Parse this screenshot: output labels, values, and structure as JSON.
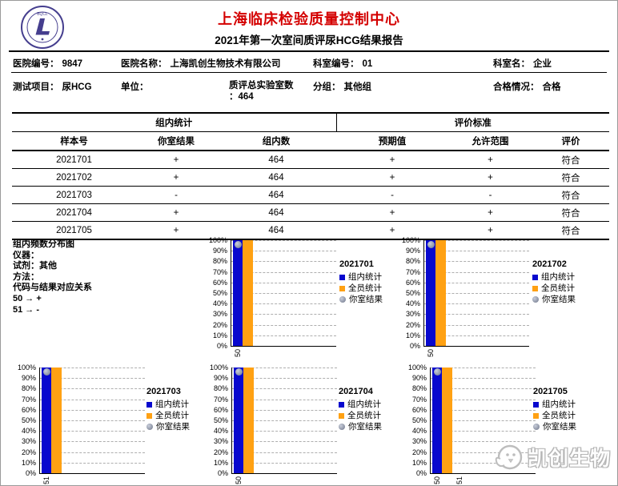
{
  "header": {
    "title": "上海临床检验质量控制中心",
    "subtitle": "2021年第一次室间质评尿HCG结果报告",
    "title_color": "#d40000",
    "logo": "quality-control-center-emblem"
  },
  "info": {
    "hospital_no": {
      "label": "医院编号：",
      "value": "9847"
    },
    "hospital_name": {
      "label": "医院名称：",
      "value": "上海凯创生物技术有限公司"
    },
    "dept_no": {
      "label": "科室编号：",
      "value": "01"
    },
    "dept_name": {
      "label": "科室名：",
      "value": "企业"
    },
    "test_item": {
      "label": "测试项目：",
      "value": "尿HCG"
    },
    "unit": {
      "label": "单位：",
      "value": ""
    },
    "total_labs": {
      "label": "质评总实验室数",
      "value": "：464"
    },
    "group": {
      "label": "分组：",
      "value": "其他组"
    },
    "qualified": {
      "label": "合格情况：",
      "value": "合格"
    }
  },
  "table": {
    "group_headers": [
      "组内统计",
      "评价标准"
    ],
    "columns": [
      "样本号",
      "你室结果",
      "组内数",
      "预期值",
      "允许范围",
      "评价"
    ],
    "rows": [
      [
        "2021701",
        "+",
        "464",
        "+",
        "+",
        "符合"
      ],
      [
        "2021702",
        "+",
        "464",
        "+",
        "+",
        "符合"
      ],
      [
        "2021703",
        "-",
        "464",
        "-",
        "-",
        "符合"
      ],
      [
        "2021704",
        "+",
        "464",
        "+",
        "+",
        "符合"
      ],
      [
        "2021705",
        "+",
        "464",
        "+",
        "+",
        "符合"
      ]
    ]
  },
  "notes": {
    "title": "组内频数分布图",
    "lines": [
      "仪器：",
      "试剂：其他",
      "方法：",
      "代码与结果对应关系",
      "50 → +",
      "51 → -"
    ]
  },
  "chart_data": [
    {
      "type": "bar",
      "title": "2021701",
      "categories": [
        "50"
      ],
      "series": [
        {
          "name": "组内统计",
          "color": "#0808ce",
          "values": [
            100
          ]
        },
        {
          "name": "全员统计",
          "color": "#ffa113",
          "values": [
            100
          ]
        }
      ],
      "marker": {
        "name": "你室结果",
        "color": "#878fa3",
        "category_index": 0,
        "value": 96
      },
      "ylim": [
        0,
        100
      ],
      "yticks": [
        "0%",
        "10%",
        "20%",
        "30%",
        "40%",
        "50%",
        "60%",
        "70%",
        "80%",
        "90%",
        "100%"
      ],
      "grid": "dashed-horizontal",
      "legend_position": "right"
    },
    {
      "type": "bar",
      "title": "2021702",
      "categories": [
        "50"
      ],
      "series": [
        {
          "name": "组内统计",
          "color": "#0808ce",
          "values": [
            100
          ]
        },
        {
          "name": "全员统计",
          "color": "#ffa113",
          "values": [
            100
          ]
        }
      ],
      "marker": {
        "name": "你室结果",
        "color": "#878fa3",
        "category_index": 0,
        "value": 96
      },
      "ylim": [
        0,
        100
      ],
      "yticks": [
        "0%",
        "10%",
        "20%",
        "30%",
        "40%",
        "50%",
        "60%",
        "70%",
        "80%",
        "90%",
        "100%"
      ],
      "grid": "dashed-horizontal",
      "legend_position": "right"
    },
    {
      "type": "bar",
      "title": "2021703",
      "categories": [
        "51"
      ],
      "series": [
        {
          "name": "组内统计",
          "color": "#0808ce",
          "values": [
            100
          ]
        },
        {
          "name": "全员统计",
          "color": "#ffa113",
          "values": [
            100
          ]
        }
      ],
      "marker": {
        "name": "你室结果",
        "color": "#878fa3",
        "category_index": 0,
        "value": 96
      },
      "ylim": [
        0,
        100
      ],
      "yticks": [
        "0%",
        "10%",
        "20%",
        "30%",
        "40%",
        "50%",
        "60%",
        "70%",
        "80%",
        "90%",
        "100%"
      ],
      "grid": "dashed-horizontal",
      "legend_position": "right"
    },
    {
      "type": "bar",
      "title": "2021704",
      "categories": [
        "50"
      ],
      "series": [
        {
          "name": "组内统计",
          "color": "#0808ce",
          "values": [
            100
          ]
        },
        {
          "name": "全员统计",
          "color": "#ffa113",
          "values": [
            100
          ]
        }
      ],
      "marker": {
        "name": "你室结果",
        "color": "#878fa3",
        "category_index": 0,
        "value": 96
      },
      "ylim": [
        0,
        100
      ],
      "yticks": [
        "0%",
        "10%",
        "20%",
        "30%",
        "40%",
        "50%",
        "60%",
        "70%",
        "80%",
        "90%",
        "100%"
      ],
      "grid": "dashed-horizontal",
      "legend_position": "right"
    },
    {
      "type": "bar",
      "title": "2021705",
      "categories": [
        "50",
        "51"
      ],
      "series": [
        {
          "name": "组内统计",
          "color": "#0808ce",
          "values": [
            100,
            0
          ]
        },
        {
          "name": "全员统计",
          "color": "#ffa113",
          "values": [
            100,
            0
          ]
        }
      ],
      "marker": {
        "name": "你室结果",
        "color": "#878fa3",
        "category_index": 0,
        "value": 96
      },
      "ylim": [
        0,
        100
      ],
      "yticks": [
        "0%",
        "10%",
        "20%",
        "30%",
        "40%",
        "50%",
        "60%",
        "70%",
        "80%",
        "90%",
        "100%"
      ],
      "grid": "dashed-horizontal",
      "legend_position": "right"
    }
  ],
  "watermark": {
    "text": "凯创生物"
  }
}
